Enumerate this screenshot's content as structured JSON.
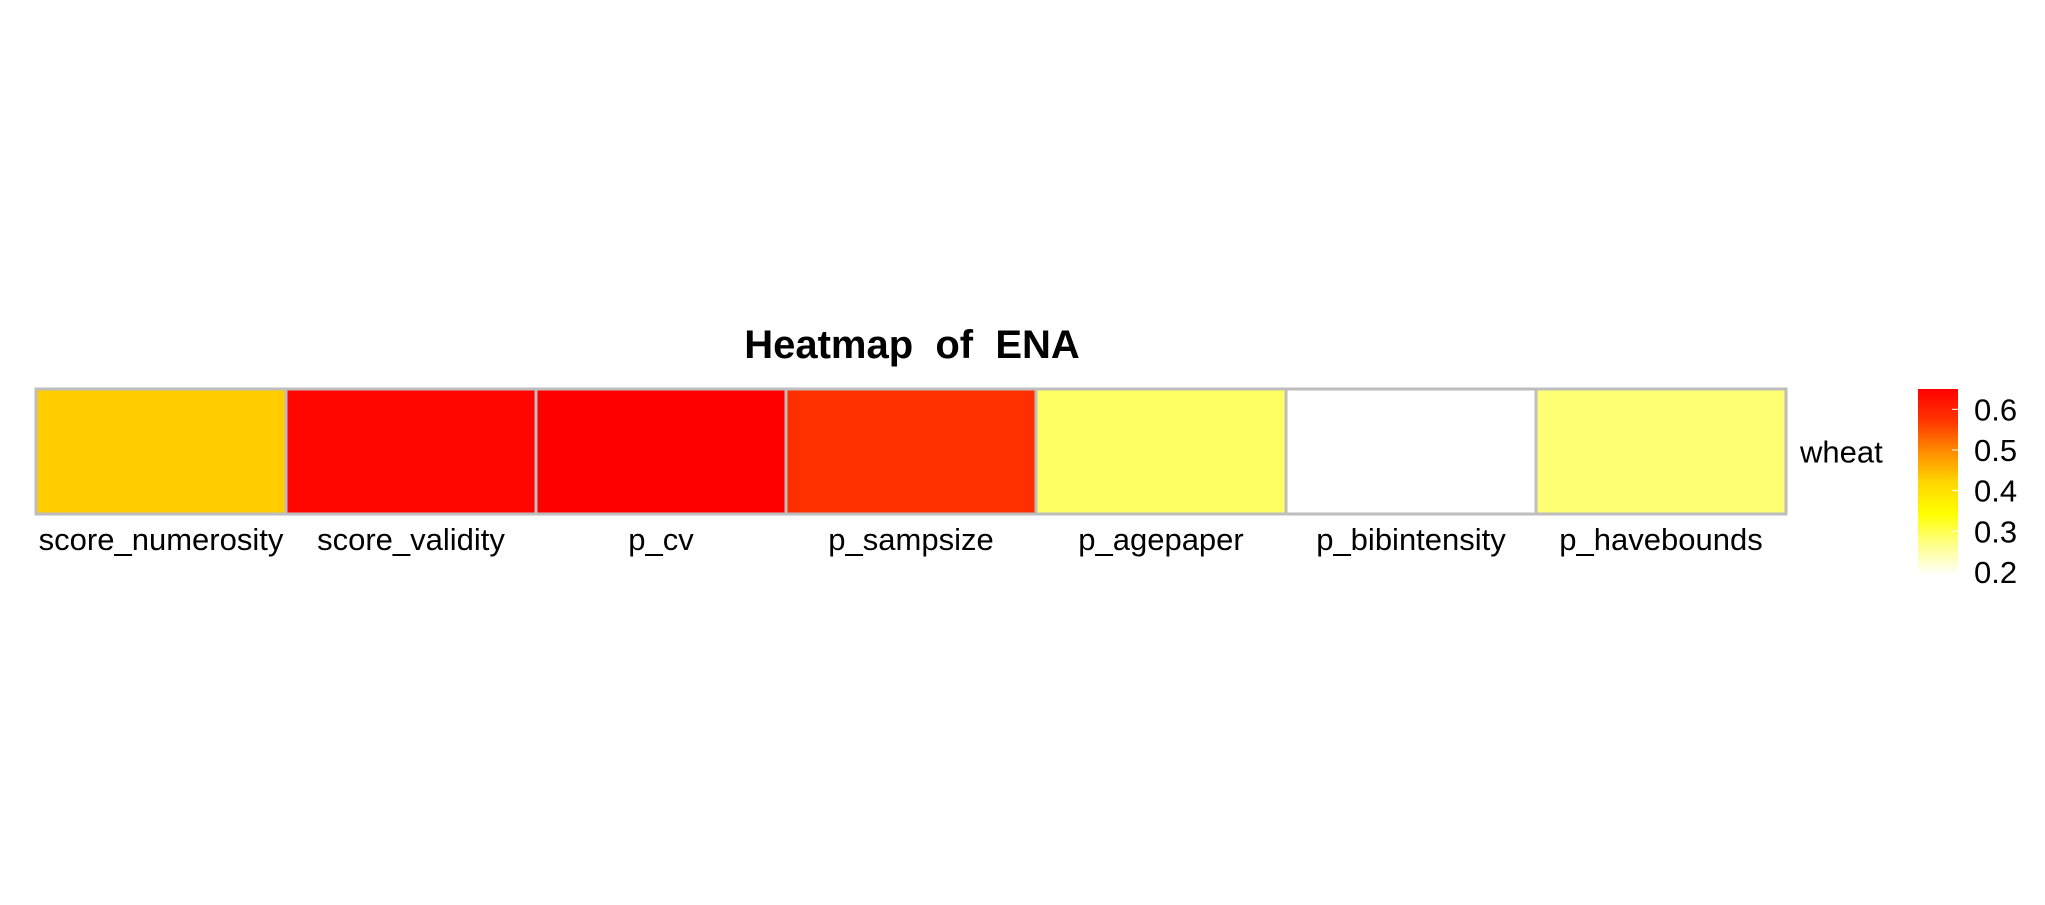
{
  "chart_data": {
    "type": "heatmap",
    "title": "Heatmap  of  ENA",
    "rows": [
      "wheat"
    ],
    "columns": [
      "score_numerosity",
      "score_validity",
      "p_cv",
      "p_sampsize",
      "p_agepaper",
      "p_bibintensity",
      "p_havebounds"
    ],
    "values": [
      [
        0.43,
        0.64,
        0.65,
        0.58,
        0.29,
        0.19,
        0.28
      ]
    ],
    "color_scale": {
      "domain": [
        0.19,
        0.65
      ],
      "colors": [
        "#ffffff",
        "#ffff8c",
        "#ffff00",
        "#ffd700",
        "#ff8c00",
        "#ff3300",
        "#ff0000"
      ],
      "ticks": [
        0.2,
        0.3,
        0.4,
        0.5,
        0.6
      ],
      "tick_labels": [
        "0.2",
        "0.3",
        "0.4",
        "0.5",
        "0.6"
      ]
    },
    "cell_border_color": "#bebebe",
    "legend": "right"
  }
}
